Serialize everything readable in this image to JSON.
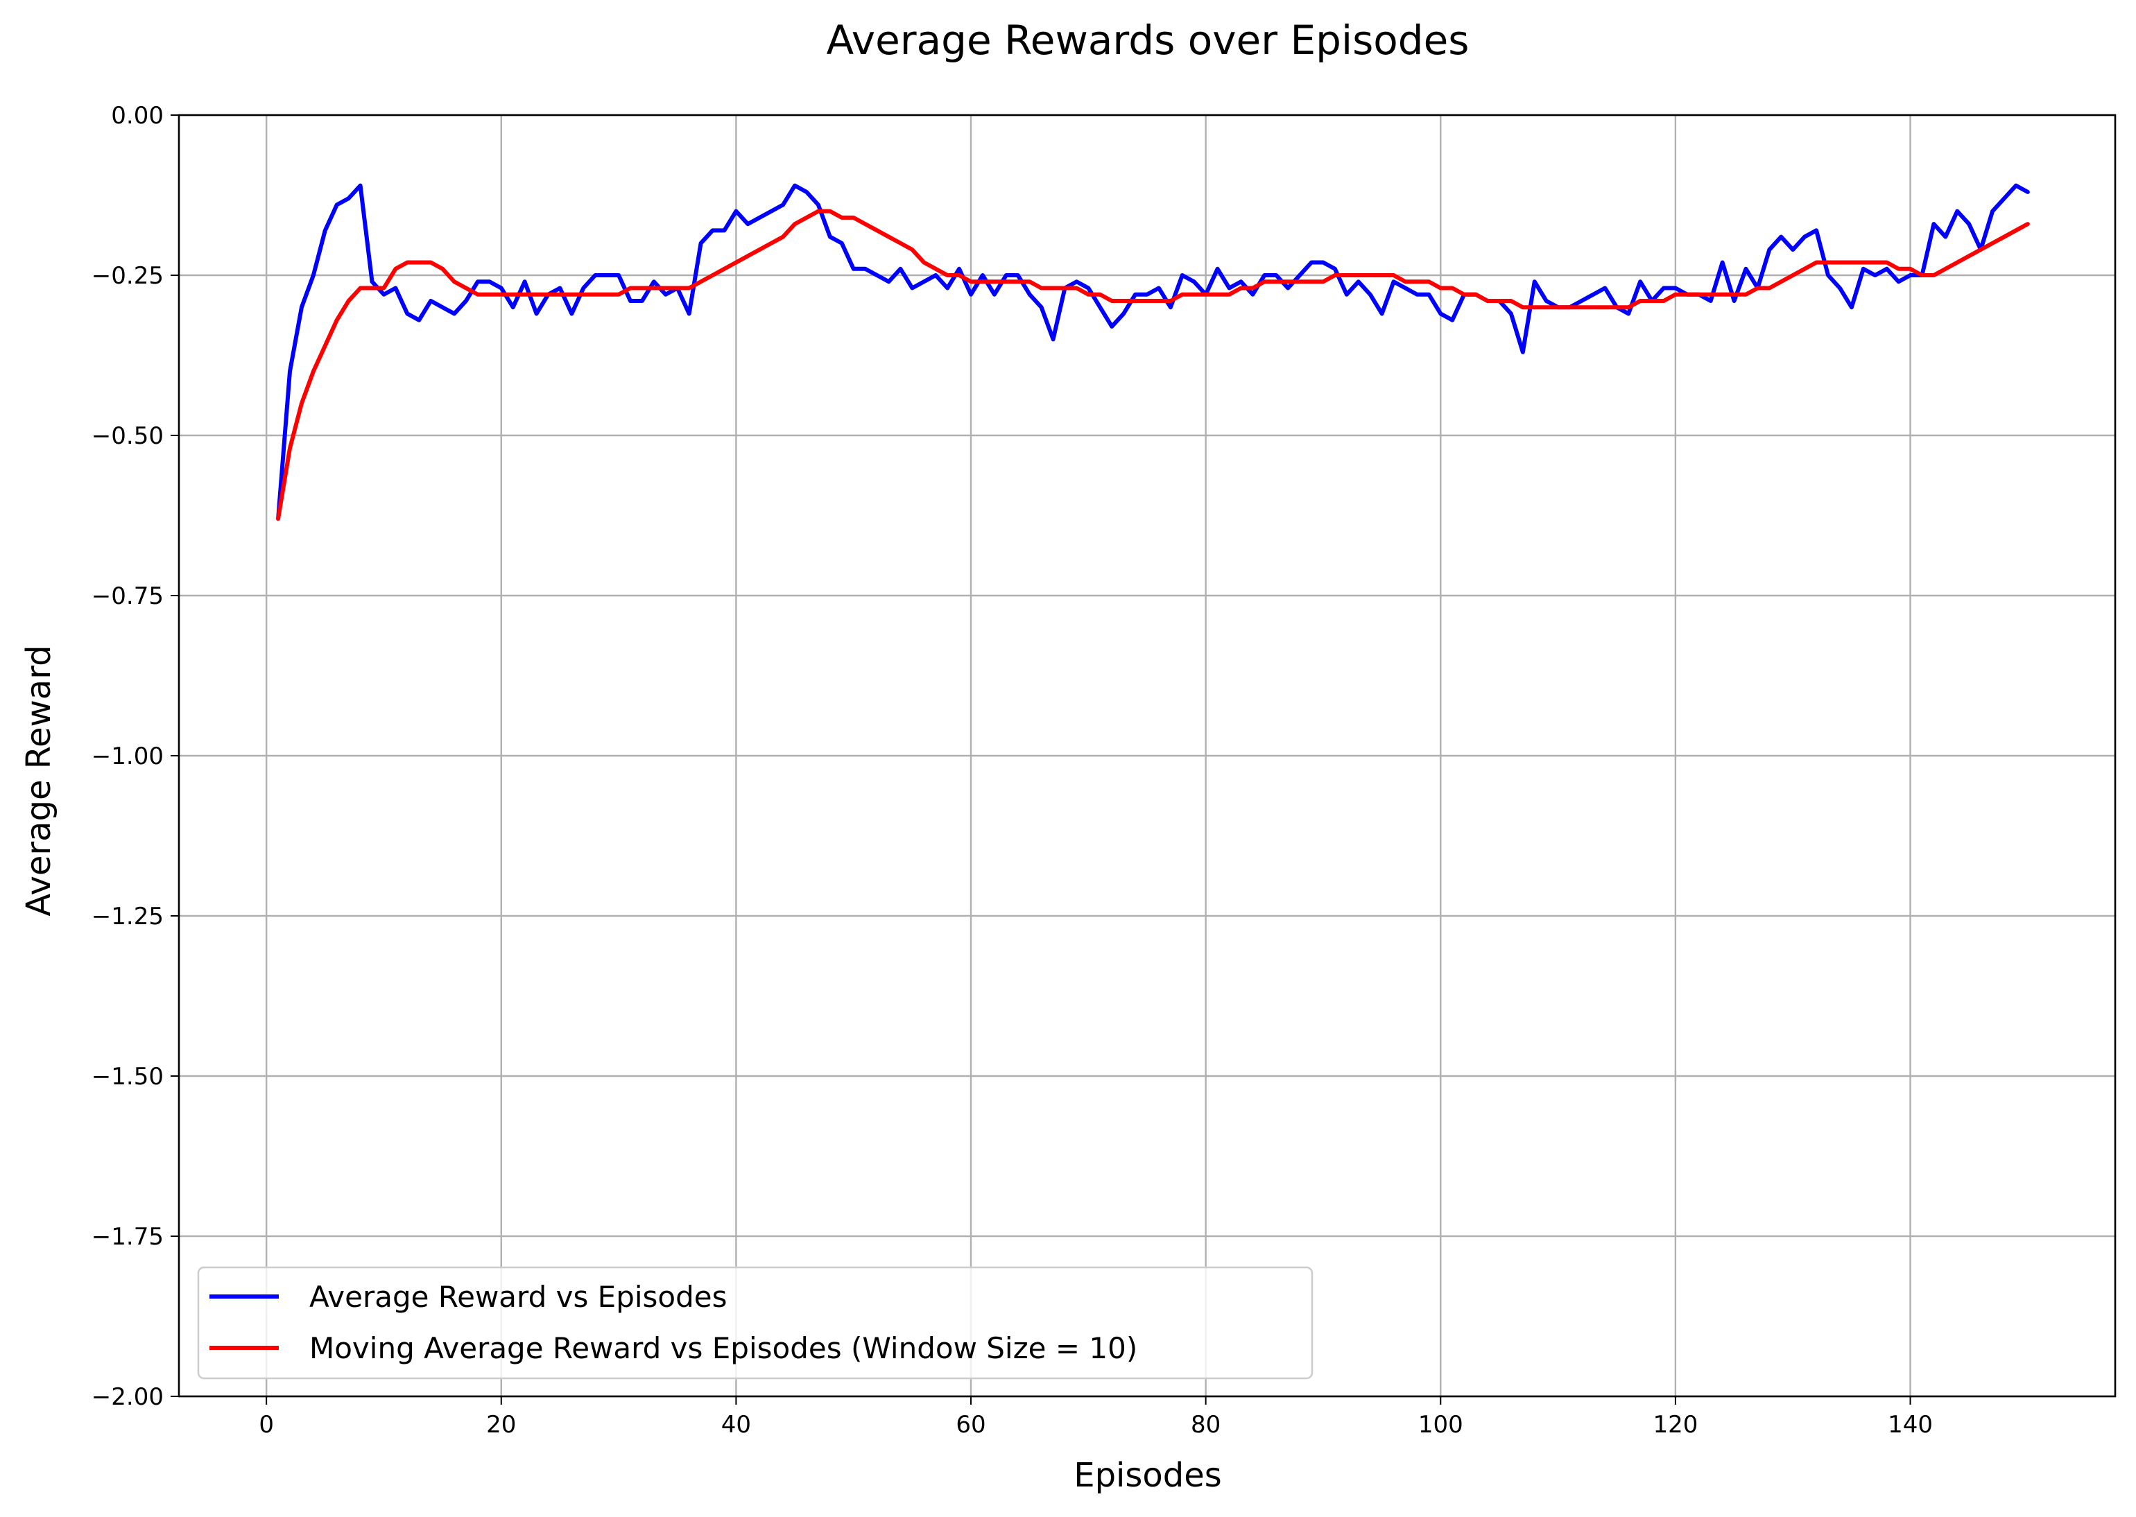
{
  "chart_data": {
    "type": "line",
    "title": "Average Rewards over Episodes",
    "xlabel": "Episodes",
    "ylabel": "Average Reward",
    "xlim": [
      -7.45,
      157.45
    ],
    "ylim": [
      -2.0,
      0.0
    ],
    "xticks": [
      0,
      20,
      40,
      60,
      80,
      100,
      120,
      140
    ],
    "xtick_labels": [
      "0",
      "20",
      "40",
      "60",
      "80",
      "100",
      "120",
      "140"
    ],
    "yticks": [
      0.0,
      -0.25,
      -0.5,
      -0.75,
      -1.0,
      -1.25,
      -1.5,
      -1.75,
      -2.0
    ],
    "ytick_labels": [
      "0.00",
      "−0.25",
      "−0.50",
      "−0.75",
      "−1.00",
      "−1.25",
      "−1.50",
      "−1.75",
      "−2.00"
    ],
    "grid": true,
    "legend_position": "lower-left",
    "series": [
      {
        "name": "Average Reward vs Episodes",
        "color": "#0000ff",
        "x_start": 1,
        "values": [
          -0.63,
          -0.4,
          -0.3,
          -0.25,
          -0.18,
          -0.14,
          -0.13,
          -0.11,
          -0.26,
          -0.28,
          -0.27,
          -0.31,
          -0.32,
          -0.29,
          -0.3,
          -0.31,
          -0.29,
          -0.26,
          -0.26,
          -0.27,
          -0.3,
          -0.26,
          -0.31,
          -0.28,
          -0.27,
          -0.31,
          -0.27,
          -0.25,
          -0.25,
          -0.25,
          -0.29,
          -0.29,
          -0.26,
          -0.28,
          -0.27,
          -0.31,
          -0.2,
          -0.18,
          -0.18,
          -0.15,
          -0.17,
          -0.16,
          -0.15,
          -0.14,
          -0.11,
          -0.12,
          -0.14,
          -0.19,
          -0.2,
          -0.24,
          -0.24,
          -0.25,
          -0.26,
          -0.24,
          -0.27,
          -0.26,
          -0.25,
          -0.27,
          -0.24,
          -0.28,
          -0.25,
          -0.28,
          -0.25,
          -0.25,
          -0.28,
          -0.3,
          -0.35,
          -0.27,
          -0.26,
          -0.27,
          -0.3,
          -0.33,
          -0.31,
          -0.28,
          -0.28,
          -0.27,
          -0.3,
          -0.25,
          -0.26,
          -0.28,
          -0.24,
          -0.27,
          -0.26,
          -0.28,
          -0.25,
          -0.25,
          -0.27,
          -0.25,
          -0.23,
          -0.23,
          -0.24,
          -0.28,
          -0.26,
          -0.28,
          -0.31,
          -0.26,
          -0.27,
          -0.28,
          -0.28,
          -0.31,
          -0.32,
          -0.28,
          -0.28,
          -0.29,
          -0.29,
          -0.31,
          -0.37,
          -0.26,
          -0.29,
          -0.3,
          -0.3,
          -0.29,
          -0.28,
          -0.27,
          -0.3,
          -0.31,
          -0.26,
          -0.29,
          -0.27,
          -0.27,
          -0.28,
          -0.28,
          -0.29,
          -0.23,
          -0.29,
          -0.24,
          -0.27,
          -0.21,
          -0.19,
          -0.21,
          -0.19,
          -0.18,
          -0.25,
          -0.27,
          -0.3,
          -0.24,
          -0.25,
          -0.24,
          -0.26,
          -0.25,
          -0.25,
          -0.17,
          -0.19,
          -0.15,
          -0.17,
          -0.21,
          -0.15,
          -0.13,
          -0.11,
          -0.12
        ]
      },
      {
        "name": "Moving Average Reward vs Episodes (Window Size = 10)",
        "color": "#ff0000",
        "x_start": 1,
        "values": [
          -0.63,
          -0.52,
          -0.45,
          -0.4,
          -0.36,
          -0.32,
          -0.29,
          -0.27,
          -0.27,
          -0.27,
          -0.24,
          -0.23,
          -0.23,
          -0.23,
          -0.24,
          -0.26,
          -0.27,
          -0.28,
          -0.28,
          -0.28,
          -0.28,
          -0.28,
          -0.28,
          -0.28,
          -0.28,
          -0.28,
          -0.28,
          -0.28,
          -0.28,
          -0.28,
          -0.27,
          -0.27,
          -0.27,
          -0.27,
          -0.27,
          -0.27,
          -0.26,
          -0.25,
          -0.24,
          -0.23,
          -0.22,
          -0.21,
          -0.2,
          -0.19,
          -0.17,
          -0.16,
          -0.15,
          -0.15,
          -0.16,
          -0.16,
          -0.17,
          -0.18,
          -0.19,
          -0.2,
          -0.21,
          -0.23,
          -0.24,
          -0.25,
          -0.25,
          -0.26,
          -0.26,
          -0.26,
          -0.26,
          -0.26,
          -0.26,
          -0.27,
          -0.27,
          -0.27,
          -0.27,
          -0.28,
          -0.28,
          -0.29,
          -0.29,
          -0.29,
          -0.29,
          -0.29,
          -0.29,
          -0.28,
          -0.28,
          -0.28,
          -0.28,
          -0.28,
          -0.27,
          -0.27,
          -0.26,
          -0.26,
          -0.26,
          -0.26,
          -0.26,
          -0.26,
          -0.25,
          -0.25,
          -0.25,
          -0.25,
          -0.25,
          -0.25,
          -0.26,
          -0.26,
          -0.26,
          -0.27,
          -0.27,
          -0.28,
          -0.28,
          -0.29,
          -0.29,
          -0.29,
          -0.3,
          -0.3,
          -0.3,
          -0.3,
          -0.3,
          -0.3,
          -0.3,
          -0.3,
          -0.3,
          -0.3,
          -0.29,
          -0.29,
          -0.29,
          -0.28,
          -0.28,
          -0.28,
          -0.28,
          -0.28,
          -0.28,
          -0.28,
          -0.27,
          -0.27,
          -0.26,
          -0.25,
          -0.24,
          -0.23,
          -0.23,
          -0.23,
          -0.23,
          -0.23,
          -0.23,
          -0.23,
          -0.24,
          -0.24,
          -0.25,
          -0.25,
          -0.24,
          -0.23,
          -0.22,
          -0.21,
          -0.2,
          -0.19,
          -0.18,
          -0.17
        ]
      }
    ]
  }
}
